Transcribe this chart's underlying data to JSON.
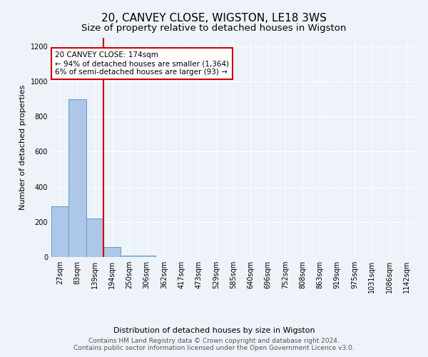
{
  "title_line1": "20, CANVEY CLOSE, WIGSTON, LE18 3WS",
  "title_line2": "Size of property relative to detached houses in Wigston",
  "xlabel": "Distribution of detached houses by size in Wigston",
  "ylabel": "Number of detached properties",
  "categories": [
    "27sqm",
    "83sqm",
    "139sqm",
    "194sqm",
    "250sqm",
    "306sqm",
    "362sqm",
    "417sqm",
    "473sqm",
    "529sqm",
    "585sqm",
    "640sqm",
    "696sqm",
    "752sqm",
    "808sqm",
    "863sqm",
    "919sqm",
    "975sqm",
    "1031sqm",
    "1086sqm",
    "1142sqm"
  ],
  "values": [
    290,
    900,
    220,
    55,
    10,
    10,
    0,
    0,
    0,
    0,
    0,
    0,
    0,
    0,
    0,
    0,
    0,
    0,
    0,
    0,
    0
  ],
  "bar_color": "#aec6e8",
  "bar_edgecolor": "#5a9fd4",
  "ylim": [
    0,
    1250
  ],
  "yticks": [
    0,
    200,
    400,
    600,
    800,
    1000,
    1200
  ],
  "property_line_x": 2.5,
  "annotation_text": "20 CANVEY CLOSE: 174sqm\n← 94% of detached houses are smaller (1,364)\n6% of semi-detached houses are larger (93) →",
  "annotation_box_color": "#ffffff",
  "annotation_box_edgecolor": "#cc0000",
  "footer_line1": "Contains HM Land Registry data © Crown copyright and database right 2024.",
  "footer_line2": "Contains public sector information licensed under the Open Government Licence v3.0.",
  "background_color": "#eef2f9",
  "grid_color": "#ffffff",
  "title_fontsize": 11,
  "subtitle_fontsize": 9.5,
  "axis_label_fontsize": 8,
  "tick_fontsize": 7,
  "annotation_fontsize": 7.5,
  "footer_fontsize": 6.5
}
